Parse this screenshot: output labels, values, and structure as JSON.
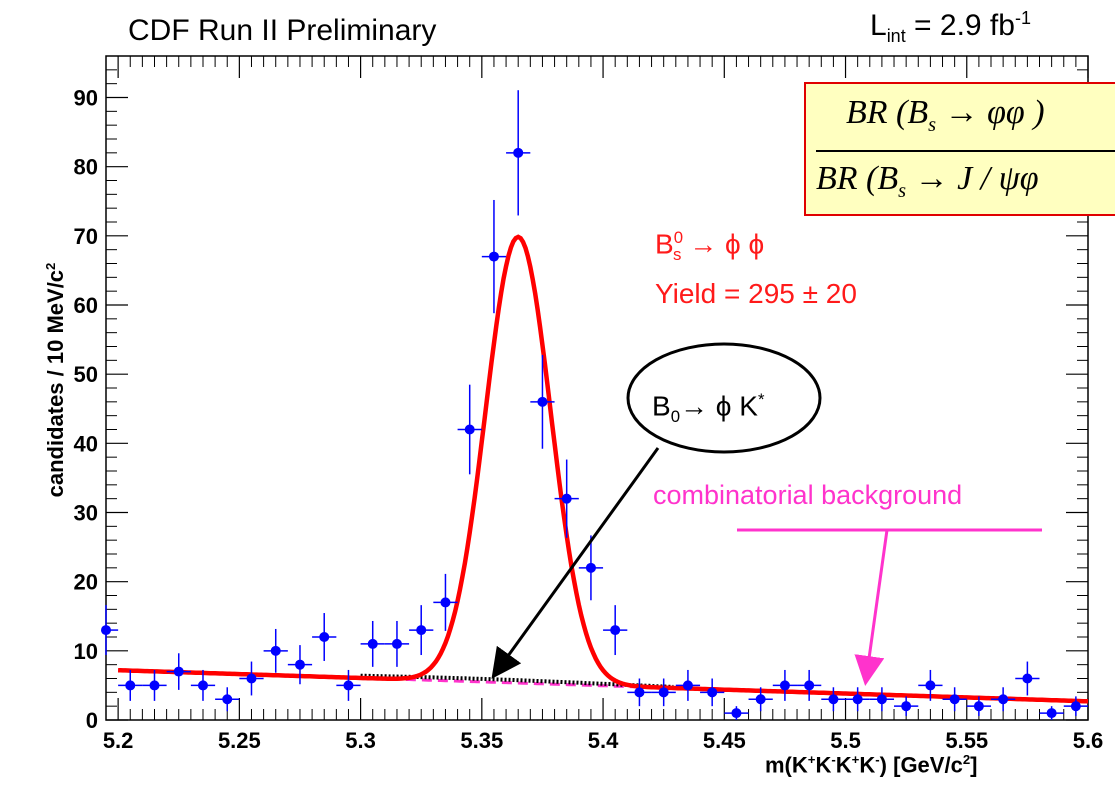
{
  "header": {
    "title": "CDF Run II Preliminary",
    "lumi_prefix": "L",
    "lumi_sub": "int",
    "lumi_main": " = 2.9 fb",
    "lumi_sup": "-1"
  },
  "annotations": {
    "decay_main": "B",
    "decay_sup": "0",
    "decay_sub": "s",
    "decay_rest": " → ϕ ϕ",
    "yield": "Yield = 295 ± 20",
    "b0_main": "B",
    "b0_sub": "0",
    "b0_rest": "→ ϕ K",
    "b0_sup": "*",
    "combinatorial": "combinatorial background",
    "ratio_num": "BR (B",
    "ratio_num_sub": "s",
    "ratio_num_rest": " → φφ )",
    "ratio_den": "BR (B",
    "ratio_den_sub": "s",
    "ratio_den_rest": " → J / ψφ"
  },
  "colors": {
    "data_points": "#0000ff",
    "fit_curve": "#ff0000",
    "background_curve": "#ff33cc",
    "b0_curve": "#000000",
    "arrow_black": "#000000",
    "arrow_pink": "#ff33cc",
    "box_fill": "#ffffc0"
  },
  "chart_data": {
    "type": "scatter",
    "xlabel_prefix": "m(K",
    "xlabel_tail": "  [GeV/c",
    "xlabel_end": "]",
    "ylabel": "candidates / 10 MeV/c",
    "ylabel_sup": "2",
    "xlim": [
      5.195,
      5.6
    ],
    "ylim": [
      0,
      96
    ],
    "x_ticks": [
      "5.2",
      "5.25",
      "5.3",
      "5.35",
      "5.4",
      "5.45",
      "5.5",
      "5.55",
      "5.6"
    ],
    "y_ticks": [
      "0",
      "10",
      "20",
      "30",
      "40",
      "50",
      "60",
      "70",
      "80",
      "90"
    ],
    "series": [
      {
        "x": [
          5.195,
          5.205,
          5.215,
          5.225,
          5.235,
          5.245,
          5.255,
          5.265,
          5.275,
          5.285,
          5.295,
          5.305,
          5.315,
          5.325,
          5.335,
          5.345,
          5.355,
          5.365,
          5.375,
          5.385,
          5.395,
          5.405,
          5.415,
          5.425,
          5.435,
          5.445,
          5.455,
          5.465,
          5.475,
          5.485,
          5.495,
          5.505,
          5.515,
          5.525,
          5.535,
          5.545,
          5.555,
          5.565,
          5.575,
          5.585,
          5.595
        ],
        "y": [
          13,
          5,
          5,
          7,
          5,
          3,
          6,
          10,
          8,
          12,
          5,
          11,
          11,
          13,
          17,
          42,
          67,
          82,
          46,
          32,
          22,
          13,
          4,
          4,
          5,
          4,
          1,
          3,
          5,
          5,
          3,
          3,
          3,
          2,
          5,
          3,
          2,
          3,
          6,
          1,
          2
        ]
      }
    ],
    "fit_peak": {
      "mean": 5.365,
      "amplitude": 64.5,
      "sigma": 0.0135
    },
    "background_line": {
      "y_at_5_2": 7.2,
      "y_at_5_6": 2.7
    },
    "b0_component": {
      "x_range": [
        5.3,
        5.43
      ],
      "peak_x": 5.345,
      "peak_y": 6.0
    }
  }
}
